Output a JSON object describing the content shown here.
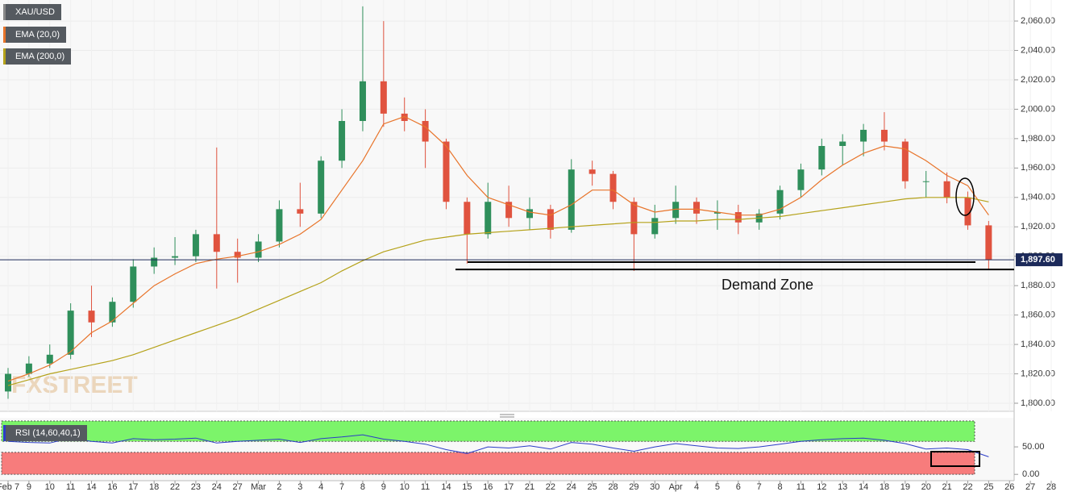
{
  "chart_data": {
    "type": "candlestick",
    "categories": [
      "Feb 7",
      "9",
      "10",
      "11",
      "14",
      "16",
      "17",
      "18",
      "22",
      "23",
      "24",
      "27",
      "Mar",
      "2",
      "3",
      "4",
      "7",
      "8",
      "9",
      "10",
      "11",
      "14",
      "15",
      "16",
      "17",
      "21",
      "22",
      "24",
      "25",
      "28",
      "29",
      "30",
      "Apr",
      "4",
      "5",
      "6",
      "7",
      "8",
      "11",
      "12",
      "13",
      "14",
      "18",
      "19",
      "20",
      "21",
      "22",
      "25",
      "26",
      "27",
      "28"
    ],
    "ohlc": {
      "name": "XAU/USD",
      "up_color": "#2f8f5b",
      "down_color": "#e0533f",
      "open": [
        1808,
        1820,
        1827,
        1833,
        1863,
        1855,
        1869,
        1893,
        1899,
        1900,
        1915,
        1903,
        1899,
        1910,
        1932,
        1929,
        1965,
        1992,
        2019,
        1997,
        1992,
        1978,
        1937,
        1915,
        1937,
        1926,
        1932,
        1918,
        1959,
        1956,
        1937,
        1915,
        1926,
        1937,
        1929,
        1930,
        1923,
        1929,
        1945,
        1959,
        1975,
        1978,
        1986,
        1978,
        1951,
        1951,
        1940,
        1921,
        null,
        null,
        null
      ],
      "high": [
        1824,
        1832,
        1840,
        1868,
        1880,
        1872,
        1898,
        1906,
        1913,
        1918,
        1974,
        1912,
        1915,
        1938,
        1950,
        1968,
        2000,
        2070,
        2060,
        2008,
        2000,
        1980,
        1940,
        1950,
        1948,
        1940,
        1935,
        1966,
        1965,
        1958,
        1940,
        1935,
        1948,
        1940,
        1938,
        1935,
        1932,
        1948,
        1963,
        1980,
        1983,
        1990,
        1998,
        1980,
        1958,
        1957,
        1944,
        1924,
        null,
        null,
        null
      ],
      "low": [
        1803,
        1818,
        1824,
        1830,
        1845,
        1852,
        1865,
        1888,
        1894,
        1896,
        1878,
        1882,
        1896,
        1906,
        1920,
        1926,
        1960,
        1985,
        1988,
        1985,
        1960,
        1932,
        1895,
        1912,
        1920,
        1918,
        1912,
        1916,
        1948,
        1932,
        1890,
        1912,
        1922,
        1922,
        1918,
        1915,
        1918,
        1925,
        1940,
        1955,
        1962,
        1968,
        1972,
        1946,
        1940,
        1936,
        1918,
        1891,
        null,
        null,
        null
      ],
      "close": [
        1820,
        1827,
        1833,
        1863,
        1855,
        1869,
        1893,
        1899,
        1900,
        1915,
        1903,
        1899,
        1910,
        1932,
        1929,
        1965,
        1992,
        2019,
        1997,
        1992,
        1978,
        1937,
        1915,
        1937,
        1926,
        1932,
        1918,
        1959,
        1956,
        1937,
        1915,
        1926,
        1937,
        1929,
        1930,
        1923,
        1929,
        1945,
        1959,
        1975,
        1978,
        1986,
        1978,
        1951,
        1951,
        1940,
        1921,
        1897.6,
        null,
        null,
        null
      ]
    },
    "series": [
      {
        "name": "EMA (20,0)",
        "color": "#e8742a",
        "values": [
          1815,
          1820,
          1826,
          1835,
          1848,
          1856,
          1868,
          1880,
          1888,
          1895,
          1898,
          1900,
          1903,
          1908,
          1915,
          1925,
          1945,
          1965,
          1990,
          1995,
          1988,
          1975,
          1955,
          1940,
          1935,
          1930,
          1928,
          1935,
          1945,
          1945,
          1935,
          1930,
          1932,
          1932,
          1930,
          1928,
          1928,
          1932,
          1940,
          1952,
          1962,
          1970,
          1975,
          1973,
          1965,
          1955,
          1948,
          1928,
          null,
          null,
          null
        ]
      },
      {
        "name": "EMA (200,0)",
        "color": "#b5a21a",
        "values": [
          1812,
          1816,
          1820,
          1823,
          1826,
          1829,
          1833,
          1838,
          1843,
          1848,
          1853,
          1858,
          1864,
          1870,
          1876,
          1882,
          1890,
          1897,
          1903,
          1907,
          1911,
          1913,
          1915,
          1916,
          1917,
          1918,
          1919,
          1920,
          1921,
          1922,
          1923,
          1923,
          1924,
          1924,
          1925,
          1925,
          1926,
          1927,
          1929,
          1931,
          1933,
          1935,
          1937,
          1939,
          1940,
          1940,
          1940,
          1937,
          null,
          null,
          null
        ]
      }
    ],
    "ylim": [
      1794.5,
      2074.3
    ],
    "yticks": [
      {
        "value": 1800,
        "label": "1,800.00"
      },
      {
        "value": 1820,
        "label": "1,820.00"
      },
      {
        "value": 1840,
        "label": "1,840.00"
      },
      {
        "value": 1860,
        "label": "1,860.00"
      },
      {
        "value": 1880,
        "label": "1,880.00"
      },
      {
        "value": 1900,
        "label": "1,900.00"
      },
      {
        "value": 1920,
        "label": "1,920.00"
      },
      {
        "value": 1940,
        "label": "1,940.00"
      },
      {
        "value": 1960,
        "label": "1,960.00"
      },
      {
        "value": 1980,
        "label": "1,980.00"
      },
      {
        "value": 2000,
        "label": "2,000.00"
      },
      {
        "value": 2020,
        "label": "2,020.00"
      },
      {
        "value": 2040,
        "label": "2,040.00"
      },
      {
        "value": 2060,
        "label": "2,060.00"
      }
    ],
    "grid": true,
    "last_price": {
      "value": 1897.6,
      "label": "1,897.60",
      "color": "#1c2a5a"
    },
    "demand_zone": {
      "label": "Demand Zone",
      "levels": [
        1896,
        1891
      ]
    },
    "watermark": "FXSTREET",
    "rsi": {
      "name": "RSI (14,60,40,1)",
      "color": "#2b3cc8",
      "values": [
        60,
        58,
        57,
        66,
        60,
        57,
        65,
        63,
        64,
        66,
        57,
        60,
        62,
        64,
        58,
        65,
        68,
        72,
        64,
        60,
        55,
        45,
        38,
        50,
        48,
        52,
        46,
        58,
        55,
        48,
        42,
        50,
        56,
        52,
        48,
        47,
        50,
        55,
        60,
        63,
        65,
        66,
        62,
        56,
        46,
        48,
        45,
        32,
        null,
        null,
        null
      ],
      "upper": 60,
      "lower": 40,
      "upper_color": "#7cf46a",
      "lower_color": "#f77c7c",
      "ylim": [
        -10,
        100
      ],
      "yticks": [
        {
          "value": 50,
          "label": "50.00"
        },
        {
          "value": 0,
          "label": "0.00"
        }
      ]
    }
  }
}
